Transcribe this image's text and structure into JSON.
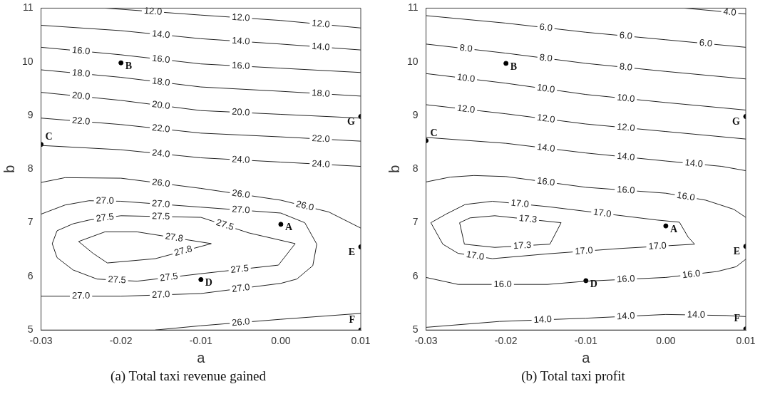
{
  "chart_data": [
    {
      "type": "line",
      "title": "(a) Total taxi revenue gained",
      "xlabel": "a",
      "ylabel": "b",
      "xlim": [
        -0.03,
        0.01
      ],
      "ylim": [
        5,
        11
      ],
      "xticks": [
        -0.03,
        -0.02,
        -0.01,
        {
          "value": 0,
          "label": "0.00"
        },
        0.01
      ],
      "yticks": [
        5,
        6,
        7,
        8,
        9,
        10,
        11
      ],
      "grid": false,
      "series": [
        {
          "name": "12.0",
          "color": "#222222",
          "x": [
            -0.022,
            -0.01,
            0,
            0.01
          ],
          "values": [
            11,
            10.87,
            10.77,
            10.63
          ]
        },
        {
          "name": "14.0",
          "color": "#222222",
          "x": [
            -0.03,
            -0.02,
            -0.01,
            0,
            0.01
          ],
          "values": [
            10.68,
            10.58,
            10.43,
            10.33,
            10.22
          ]
        },
        {
          "name": "16.0",
          "color": "#222222",
          "x": [
            -0.03,
            -0.02,
            -0.01,
            0,
            0.01
          ],
          "values": [
            10.27,
            10.13,
            9.96,
            9.88,
            9.8
          ]
        },
        {
          "name": "18.0",
          "color": "#222222",
          "x": [
            -0.03,
            -0.02,
            -0.01,
            0,
            0.01
          ],
          "values": [
            9.85,
            9.71,
            9.53,
            9.45,
            9.36
          ]
        },
        {
          "name": "20.0",
          "color": "#222222",
          "x": [
            -0.03,
            -0.02,
            -0.01,
            0,
            0.01
          ],
          "values": [
            9.43,
            9.28,
            9.09,
            9.02,
            8.95
          ]
        },
        {
          "name": "22.0",
          "color": "#222222",
          "x": [
            -0.03,
            -0.02,
            -0.01,
            0,
            0.01
          ],
          "values": [
            8.95,
            8.83,
            8.67,
            8.6,
            8.52
          ]
        },
        {
          "name": "24.0",
          "color": "#222222",
          "x": [
            -0.03,
            -0.02,
            -0.01,
            0,
            0.01
          ],
          "values": [
            8.44,
            8.36,
            8.21,
            8.13,
            8.05
          ]
        },
        {
          "name": "26.0",
          "color": "#222222",
          "x": [
            -0.03,
            -0.027,
            -0.02,
            -0.01,
            0,
            0.006,
            0.01
          ],
          "values": [
            7.75,
            7.84,
            7.83,
            7.64,
            7.42,
            7.2,
            6.9
          ]
        },
        {
          "name": "27.0",
          "color": "#222222",
          "x": [
            -0.03,
            -0.027,
            -0.024,
            -0.02,
            -0.01,
            0,
            0.003,
            0.0045
          ],
          "values": [
            7.16,
            7.33,
            7.41,
            7.4,
            7.29,
            7.18,
            7.0,
            6.6
          ]
        },
        {
          "name": "27.0",
          "color": "#222222",
          "x": [
            -0.03,
            -0.02,
            -0.01,
            0,
            0.002,
            0.004,
            0.0045
          ],
          "values": [
            5.63,
            5.63,
            5.68,
            5.87,
            5.95,
            6.2,
            6.6
          ]
        },
        {
          "name": "27.5",
          "color": "#222222",
          "x": [
            -0.0286,
            -0.028,
            -0.026,
            -0.024,
            -0.02,
            -0.01,
            -0.004,
            0.0018
          ],
          "values": [
            6.61,
            6.85,
            6.98,
            7.05,
            7.13,
            7.1,
            6.81,
            6.61
          ]
        },
        {
          "name": "27.5",
          "color": "#222222",
          "x": [
            -0.0286,
            -0.028,
            -0.026,
            -0.023,
            -0.018,
            -0.01,
            -0.0003,
            0.0018
          ],
          "values": [
            6.61,
            6.35,
            6.12,
            5.95,
            5.91,
            6.05,
            6.21,
            6.61
          ]
        },
        {
          "name": "27.8",
          "color": "#222222",
          "x": [
            -0.0253,
            -0.022,
            -0.018,
            -0.0087
          ],
          "values": [
            6.65,
            6.83,
            6.83,
            6.61
          ]
        },
        {
          "name": "27.8",
          "color": "#222222",
          "x": [
            -0.0253,
            -0.0235,
            -0.0217,
            -0.0157,
            -0.0087
          ],
          "values": [
            6.65,
            6.43,
            6.25,
            6.33,
            6.61
          ]
        },
        {
          "name": "26.0",
          "color": "#222222",
          "x": [
            -0.0157,
            -0.01,
            0,
            0.01
          ],
          "values": [
            5,
            5.08,
            5.2,
            5.31
          ]
        },
        {
          "type": "scatter",
          "marker": "circle",
          "color": "#000000",
          "x": [
            0,
            -0.02,
            -0.03,
            -0.01,
            0.01,
            0.01,
            0.01
          ],
          "values": [
            6.97,
            9.98,
            8.46,
            5.94,
            6.55,
            5,
            8.98
          ]
        }
      ],
      "annotations": [
        {
          "text": "A",
          "x": 0,
          "y": 6.97
        },
        {
          "text": "B",
          "x": -0.02,
          "y": 9.98
        },
        {
          "text": "C",
          "x": -0.03,
          "y": 8.46
        },
        {
          "text": "D",
          "x": -0.01,
          "y": 5.94
        },
        {
          "text": "E",
          "x": 0.01,
          "y": 6.55
        },
        {
          "text": "F",
          "x": 0.01,
          "y": 5
        },
        {
          "text": "G",
          "x": 0.01,
          "y": 8.98
        }
      ]
    },
    {
      "type": "line",
      "title": "(b) Total taxi profit",
      "xlabel": "a",
      "ylabel": "b",
      "xlim": [
        -0.03,
        0.01
      ],
      "ylim": [
        5,
        11
      ],
      "xticks": [
        -0.03,
        -0.02,
        -0.01,
        {
          "value": 0,
          "label": "0.00"
        },
        0.01
      ],
      "yticks": [
        5,
        6,
        7,
        8,
        9,
        10,
        11
      ],
      "grid": false,
      "series": [
        {
          "name": "4.0",
          "color": "#222222",
          "x": [
            0.0023,
            0.006,
            0.01
          ],
          "values": [
            11,
            10.95,
            10.89
          ]
        },
        {
          "name": "6.0",
          "color": "#222222",
          "x": [
            -0.03,
            -0.02,
            -0.01,
            0,
            0.01
          ],
          "values": [
            10.86,
            10.72,
            10.55,
            10.41,
            10.27
          ]
        },
        {
          "name": "8.0",
          "color": "#222222",
          "x": [
            -0.03,
            -0.02,
            -0.01,
            0,
            0.01
          ],
          "values": [
            10.33,
            10.16,
            9.97,
            9.82,
            9.68
          ]
        },
        {
          "name": "10.0",
          "color": "#222222",
          "x": [
            -0.03,
            -0.02,
            -0.01,
            0,
            0.01
          ],
          "values": [
            9.78,
            9.6,
            9.39,
            9.24,
            9.1
          ]
        },
        {
          "name": "12.0",
          "color": "#222222",
          "x": [
            -0.03,
            -0.02,
            -0.01,
            0,
            0.01
          ],
          "values": [
            9.2,
            9.03,
            8.84,
            8.7,
            8.56
          ]
        },
        {
          "name": "14.0",
          "color": "#222222",
          "x": [
            -0.03,
            -0.02,
            -0.01,
            0,
            0.007,
            0.01
          ],
          "values": [
            8.59,
            8.48,
            8.3,
            8.15,
            8.05,
            7.97
          ]
        },
        {
          "name": "16.0",
          "color": "#222222",
          "x": [
            -0.03,
            -0.027,
            -0.024,
            -0.02,
            -0.01,
            0,
            0.005,
            0.0085,
            0.01
          ],
          "values": [
            7.76,
            7.85,
            7.88,
            7.86,
            7.66,
            7.55,
            7.42,
            7.25,
            7.1
          ]
        },
        {
          "name": "17.0",
          "color": "#222222",
          "x": [
            -0.0294,
            -0.0275,
            -0.0251,
            -0.0217,
            -0.0148,
            -0.0011,
            0.0017,
            0.0028,
            0.0036
          ],
          "values": [
            7.0,
            7.16,
            7.34,
            7.4,
            7.3,
            7.05,
            7.01,
            6.73,
            6.6
          ]
        },
        {
          "name": "17.0",
          "color": "#222222",
          "x": [
            -0.0294,
            -0.0279,
            -0.026,
            -0.0217,
            -0.0148,
            -0.0057,
            0.0036
          ],
          "values": [
            7.0,
            6.6,
            6.43,
            6.33,
            6.42,
            6.52,
            6.6
          ]
        },
        {
          "name": "17.3",
          "color": "#222222",
          "x": [
            -0.0258,
            -0.0245,
            -0.0214,
            -0.0131
          ],
          "values": [
            7.0,
            7.09,
            7.13,
            7.0
          ]
        },
        {
          "name": "17.3",
          "color": "#222222",
          "x": [
            -0.0258,
            -0.0252,
            -0.0214,
            -0.0145,
            -0.0131
          ],
          "values": [
            7.0,
            6.6,
            6.54,
            6.6,
            7.0
          ]
        },
        {
          "name": "16.0",
          "color": "#222222",
          "x": [
            -0.03,
            -0.026,
            -0.0148,
            -0.01,
            0,
            0.0064,
            0.0088,
            0.01
          ],
          "values": [
            5.98,
            5.85,
            5.85,
            5.91,
            5.98,
            6.09,
            6.18,
            6.32
          ]
        },
        {
          "name": "14.0",
          "color": "#222222",
          "x": [
            -0.03,
            -0.0208,
            -0.01,
            0,
            0.0076,
            0.01
          ],
          "values": [
            5.05,
            5.16,
            5.22,
            5.29,
            5.27,
            5.25
          ]
        },
        {
          "type": "scatter",
          "marker": "circle",
          "color": "#000000",
          "x": [
            0,
            -0.02,
            -0.03,
            -0.01,
            0.01,
            0.01,
            0.01
          ],
          "values": [
            6.94,
            9.97,
            8.53,
            5.92,
            6.56,
            5.02,
            8.98
          ]
        }
      ],
      "annotations": [
        {
          "text": "A",
          "x": 0,
          "y": 6.94
        },
        {
          "text": "B",
          "x": -0.02,
          "y": 9.97
        },
        {
          "text": "C",
          "x": -0.03,
          "y": 8.53
        },
        {
          "text": "D",
          "x": -0.01,
          "y": 5.92
        },
        {
          "text": "E",
          "x": 0.01,
          "y": 6.56
        },
        {
          "text": "F",
          "x": 0.01,
          "y": 5.02
        },
        {
          "text": "G",
          "x": 0.01,
          "y": 8.98
        }
      ]
    }
  ]
}
